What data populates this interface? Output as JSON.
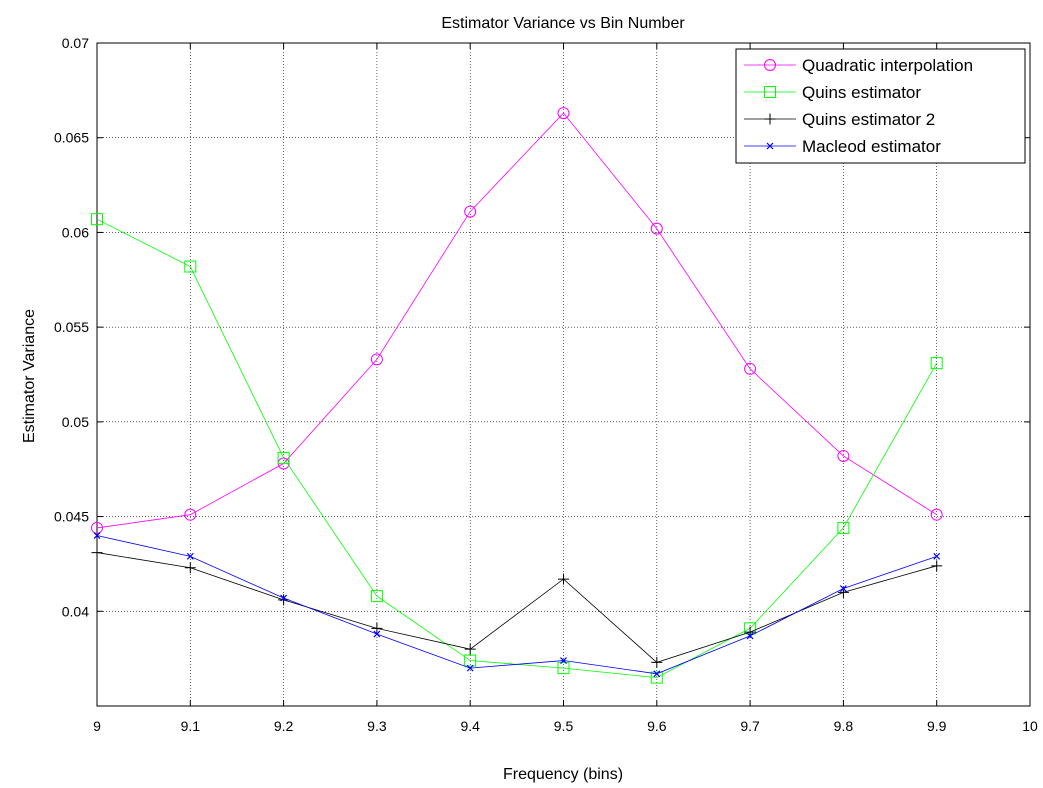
{
  "chart_data": {
    "type": "line",
    "title": "Estimator Variance vs Bin Number",
    "xlabel": "Frequency (bins)",
    "ylabel": "Estimator Variance",
    "xlim": [
      9,
      10
    ],
    "ylim": [
      0.035,
      0.07
    ],
    "xticks": [
      9,
      9.1,
      9.2,
      9.3,
      9.4,
      9.5,
      9.6,
      9.7,
      9.8,
      9.9,
      10
    ],
    "xtick_labels": [
      "9",
      "9.1",
      "9.2",
      "9.3",
      "9.4",
      "9.5",
      "9.6",
      "9.7",
      "9.8",
      "9.9",
      "10"
    ],
    "yticks": [
      0.04,
      0.045,
      0.05,
      0.055,
      0.06,
      0.065,
      0.07
    ],
    "ytick_labels": [
      "0.04",
      "0.045",
      "0.05",
      "0.055",
      "0.06",
      "0.065",
      "0.07"
    ],
    "grid": true,
    "legend_position": "top-right",
    "x": [
      9,
      9.1,
      9.2,
      9.3,
      9.4,
      9.5,
      9.6,
      9.7,
      9.8,
      9.9
    ],
    "series": [
      {
        "name": "Quadratic interpolation",
        "color": "#ff00ff",
        "marker": "circle",
        "values": [
          0.0444,
          0.0451,
          0.0478,
          0.0533,
          0.0611,
          0.0663,
          0.0602,
          0.0528,
          0.0482,
          0.0451
        ]
      },
      {
        "name": "Quins estimator",
        "color": "#00ff00",
        "marker": "square",
        "values": [
          0.0607,
          0.0582,
          0.0481,
          0.0408,
          0.0374,
          0.037,
          0.0365,
          0.0391,
          0.0444,
          0.0531
        ]
      },
      {
        "name": "Quins estimator 2",
        "color": "#000000",
        "marker": "plus",
        "values": [
          0.0431,
          0.0423,
          0.0406,
          0.0391,
          0.038,
          0.0417,
          0.0373,
          0.0389,
          0.041,
          0.0424
        ]
      },
      {
        "name": "Macleod estimator",
        "color": "#0000ff",
        "marker": "x",
        "values": [
          0.044,
          0.0429,
          0.0407,
          0.0388,
          0.037,
          0.0374,
          0.0367,
          0.0387,
          0.0412,
          0.0429
        ]
      }
    ]
  }
}
